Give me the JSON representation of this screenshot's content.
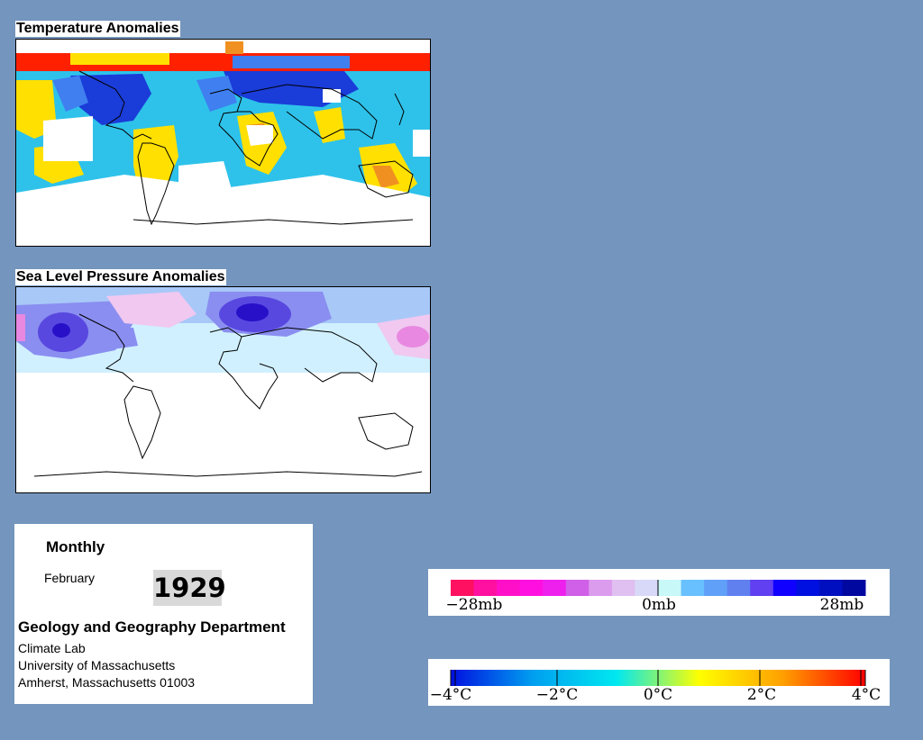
{
  "temperature_map": {
    "title": "Temperature Anomalies",
    "colors": {
      "strong_cold": "#1a3cd8",
      "cold": "#3f7ff0",
      "cool": "#2ec2ea",
      "neutral": "#a8eef5",
      "warm": "#ffe000",
      "hot": "#f09020",
      "very_hot": "#ff2000",
      "no_data": "#ffffff"
    }
  },
  "pressure_map": {
    "title": "Sea Level Pressure Anomalies",
    "colors": {
      "high_strong": "#2810c8",
      "high": "#5848e0",
      "moderate": "#8a8ef0",
      "mild": "#a8c8f8",
      "slight": "#d0f0ff",
      "low_mild": "#f0c8f0",
      "low": "#e888e0"
    }
  },
  "info": {
    "frequency": "Monthly",
    "month": "February",
    "year": "1929",
    "department": "Geology and Geography Department",
    "lab": "Climate Lab",
    "university": "University of Massachusetts",
    "address": "Amherst, Massachusetts 01003"
  },
  "pressure_legend": {
    "labels": [
      "−28mb",
      "0mb",
      "28mb"
    ],
    "colors": [
      "#ff1060",
      "#ff10a0",
      "#ff10c8",
      "#ff10e0",
      "#ee20ee",
      "#d060e8",
      "#dc9ced",
      "#e0c0f0",
      "#d8d8f8",
      "#c8f8f8",
      "#68c0ff",
      "#60a0f8",
      "#6080f0",
      "#6040f0",
      "#1000ff",
      "#0010e0",
      "#0010c0",
      "#0008a0"
    ]
  },
  "temperature_legend": {
    "labels": [
      "−4°C",
      "−2°C",
      "0°C",
      "2°C",
      "4°C"
    ],
    "gradient": [
      "#0010e0",
      "#00a0f0",
      "#00e8f0",
      "#ffff00",
      "#ffa000",
      "#ff0000"
    ]
  }
}
